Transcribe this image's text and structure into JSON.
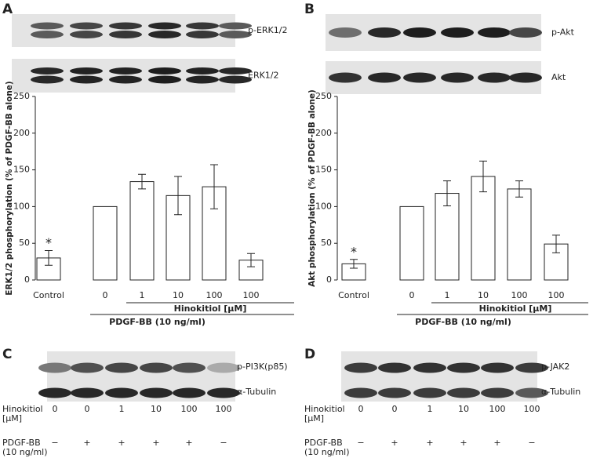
{
  "chart_data": [
    {
      "type": "bar",
      "panel": "A",
      "blots": [
        "p-ERK1/2",
        "ERK1/2"
      ],
      "ylabel": "ERK1/2 phosphorylation (% of PDGF-BB alone)",
      "categories": [
        "Control",
        "0",
        "1",
        "10",
        "100",
        "100"
      ],
      "values": [
        30,
        100,
        134,
        115,
        127,
        27
      ],
      "errors": [
        10,
        null,
        10,
        26,
        30,
        9
      ],
      "significance": [
        "*",
        null,
        null,
        null,
        null,
        null
      ],
      "group_labels": [
        "Hinokitiol [µM]",
        "PDGF-BB (10 ng/ml)"
      ],
      "color": "#ffffff",
      "ylim": [
        0,
        250
      ],
      "yticks": [
        0,
        50,
        100,
        150,
        200,
        250
      ]
    },
    {
      "type": "bar",
      "panel": "B",
      "blots": [
        "p-Akt",
        "Akt"
      ],
      "ylabel": "Akt phosphorylation (% of PDGF-BB alone)",
      "categories": [
        "Control",
        "0",
        "1",
        "10",
        "100",
        "100"
      ],
      "values": [
        22,
        100,
        118,
        141,
        124,
        49
      ],
      "errors": [
        6,
        null,
        17,
        21,
        11,
        12
      ],
      "significance": [
        "*",
        null,
        null,
        null,
        null,
        null
      ],
      "group_labels": [
        "Hinokitiol [µM]",
        "PDGF-BB (10 ng/ml)"
      ],
      "color": "#ffffff",
      "ylim": [
        0,
        250
      ],
      "yticks": [
        0,
        50,
        100,
        150,
        200,
        250
      ]
    }
  ],
  "panels": [
    {
      "panel": "C",
      "blots": [
        "p-PI3K(p85)",
        "α-Tubulin"
      ],
      "rows": [
        {
          "label": [
            "Hinokitiol",
            "[µM]"
          ],
          "values": [
            0,
            0,
            1,
            10,
            100,
            100
          ]
        },
        {
          "label": [
            "PDGF-BB",
            "(10 ng/ml)"
          ],
          "values": [
            "−",
            "+",
            "+",
            "+",
            "+",
            "−"
          ]
        }
      ]
    },
    {
      "panel": "D",
      "blots": [
        "p-JAK2",
        "α-Tubulin"
      ],
      "rows": [
        {
          "label": [
            "Hinokitiol",
            "[µM]"
          ],
          "values": [
            0,
            0,
            1,
            10,
            100,
            100
          ]
        },
        {
          "label": [
            "PDGF-BB",
            "(10 ng/ml)"
          ],
          "values": [
            "−",
            "+",
            "+",
            "+",
            "+",
            "−"
          ]
        }
      ]
    }
  ]
}
